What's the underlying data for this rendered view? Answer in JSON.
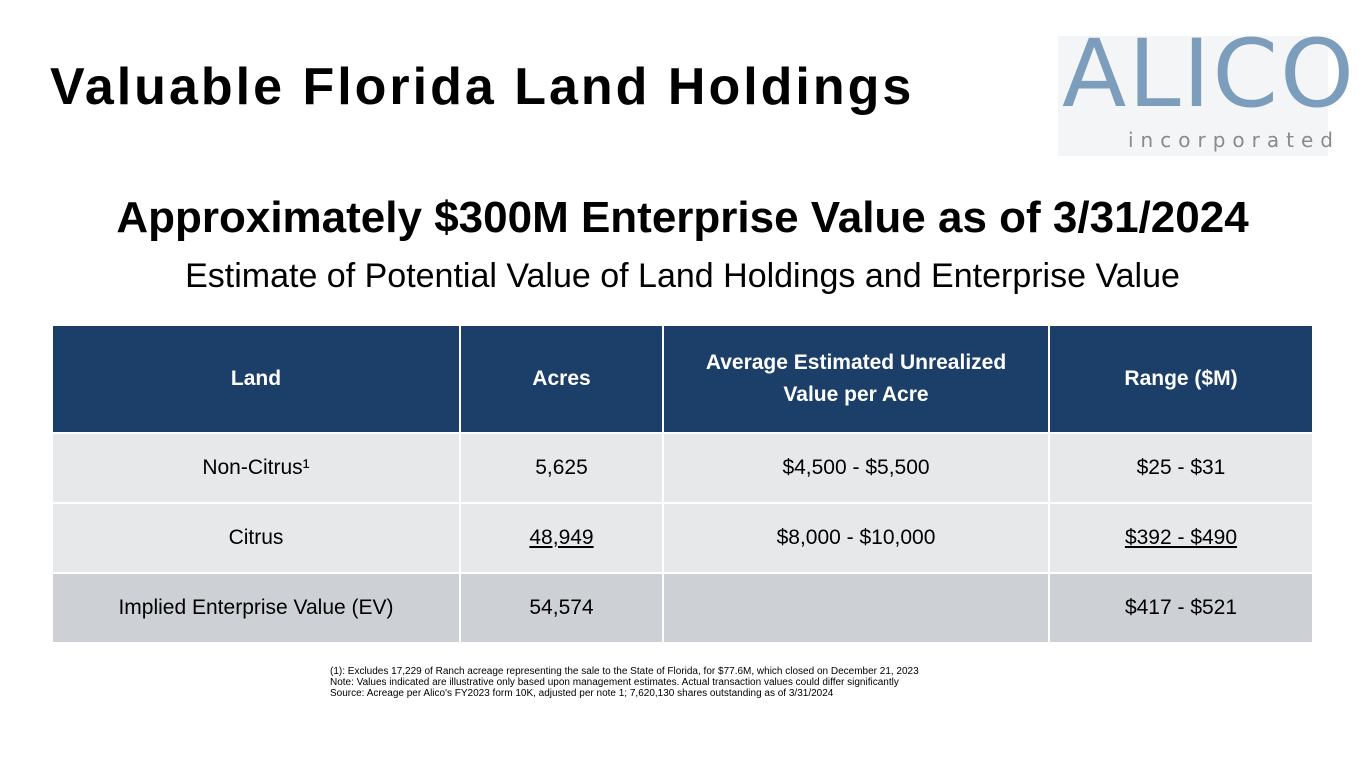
{
  "title": "Valuable Florida Land Holdings",
  "logo": {
    "word": "ALICO",
    "sub": "incorporated"
  },
  "headline": "Approximately $300M Enterprise Value as of 3/31/2024",
  "subheadline": "Estimate of Potential Value of Land Holdings and Enterprise Value",
  "table": {
    "headers": [
      "Land",
      "Acres",
      "Average Estimated Unrealized Value per Acre",
      "Range ($M)"
    ],
    "rows": [
      [
        "Non-Citrus¹",
        "5,625",
        "$4,500 - $5,500",
        "$25 - $31"
      ],
      [
        "Citrus",
        "48,949",
        "$8,000 - $10,000",
        "$392 - $490"
      ],
      [
        "Implied Enterprise Value (EV)",
        "54,574",
        "",
        "$417 - $521"
      ]
    ]
  },
  "footnotes": [
    "(1): Excludes 17,229 of Ranch acreage representing the sale to the State of Florida, for $77.6M, which closed on December 21, 2023",
    "Note: Values indicated are illustrative only based upon management estimates. Actual transaction values could differ significantly",
    "Source: Acreage per Alico's FY2023 form 10K, adjusted per note 1; 7,620,130 shares outstanding as of 3/31/2024"
  ],
  "colors": {
    "header_bg": "#1c3f6a",
    "row_light": "#e7e8ea",
    "row_dark": "#cdd0d4",
    "logo_blue": "#7d9dbd"
  }
}
